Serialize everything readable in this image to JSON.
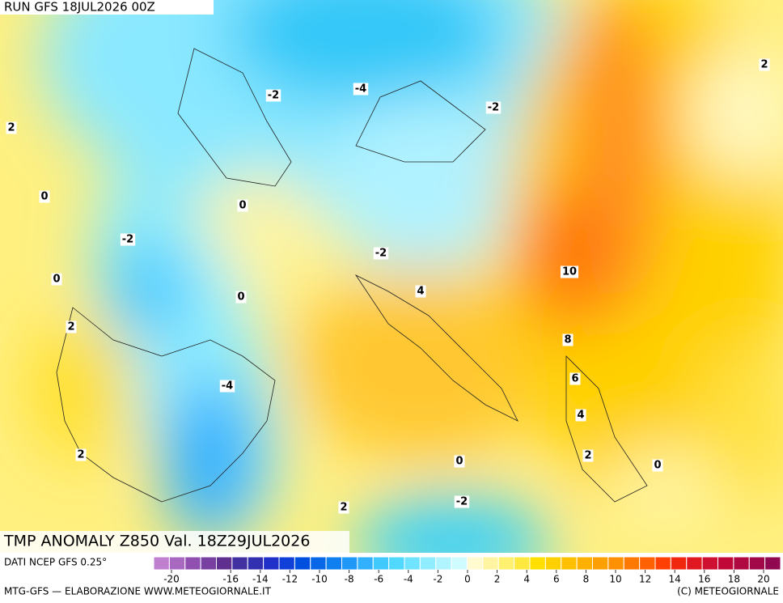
{
  "header": {
    "run": "RUN GFS 18JUL2026 00Z"
  },
  "map": {
    "title": "TMP ANOMALY Z850 Val. 18Z29JUL2026",
    "contour_labels": [
      2,
      -2,
      -4,
      -2,
      2,
      0,
      0,
      -2,
      -2,
      10,
      0,
      4,
      0,
      2,
      8,
      6,
      -4,
      4,
      2,
      2,
      0,
      0,
      -2,
      2
    ]
  },
  "colorbar": {
    "source": "DATI NCEP GFS 0.25°",
    "ticks": [
      -20,
      -16,
      -14,
      -12,
      -10,
      -8,
      -6,
      -4,
      -2,
      0,
      2,
      4,
      6,
      8,
      10,
      12,
      14,
      16,
      18,
      20
    ],
    "colors": [
      "#c080d0",
      "#a868c0",
      "#9050b0",
      "#7840a0",
      "#603090",
      "#4030a0",
      "#3030b0",
      "#2030c8",
      "#1040d8",
      "#0050e0",
      "#0868e8",
      "#1080f0",
      "#2098f8",
      "#30b0ff",
      "#40c8ff",
      "#50d8ff",
      "#70e4ff",
      "#90ecff",
      "#b0f4ff",
      "#d0fbff",
      "#fffad0",
      "#fff4a0",
      "#fff070",
      "#ffe840",
      "#ffe000",
      "#ffd000",
      "#ffc000",
      "#ffb000",
      "#ffa000",
      "#ff9000",
      "#ff7800",
      "#ff6000",
      "#ff4000",
      "#f02810",
      "#e01820",
      "#d01030",
      "#c00838",
      "#b00840",
      "#a00848",
      "#900850"
    ]
  },
  "footer": {
    "credit": "MTG-GFS — ELABORAZIONE WWW.METEOGIORNALE.IT",
    "copyright": "(C) METEOGIORNALE"
  }
}
